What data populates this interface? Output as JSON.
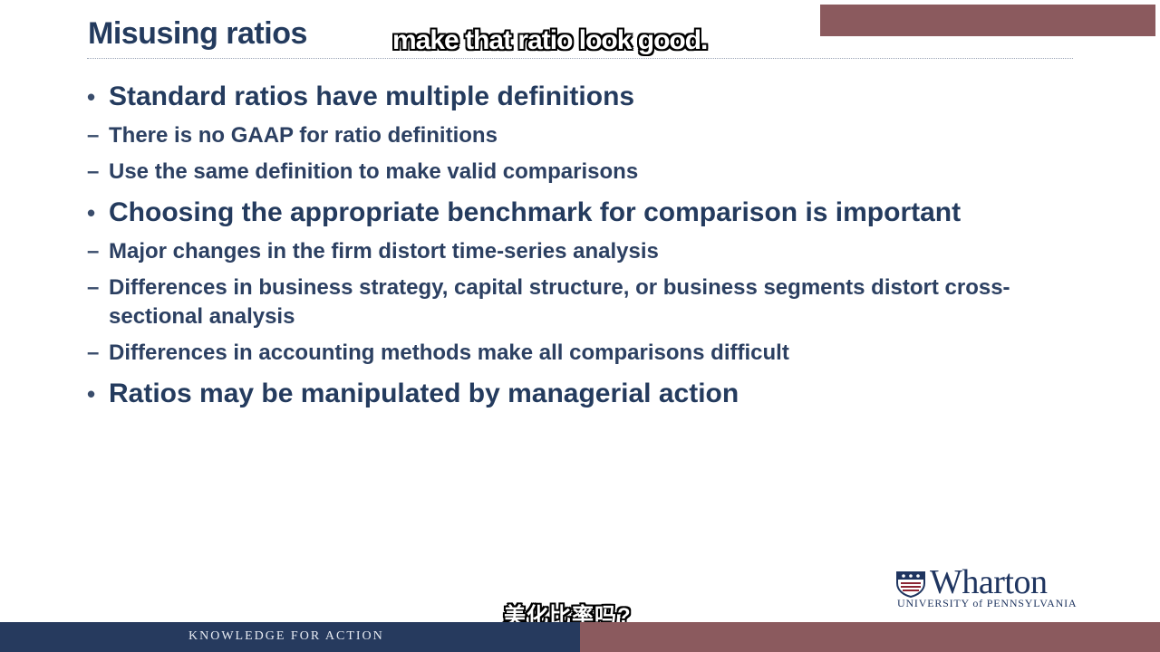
{
  "slide": {
    "title": "Misusing ratios",
    "bullets": [
      {
        "text": "Standard ratios have multiple definitions",
        "subs": [
          "There is no GAAP for ratio definitions",
          "Use the same definition to make valid comparisons"
        ]
      },
      {
        "text": "Choosing the appropriate benchmark for comparison is important",
        "subs": [
          "Major changes in the firm distort time-series analysis",
          "Differences in business strategy, capital structure, or business segments distort cross-sectional analysis",
          "Differences in accounting methods make all comparisons difficult"
        ]
      },
      {
        "text": "Ratios may be manipulated by managerial action",
        "subs": []
      }
    ],
    "bullet_glyph": "•",
    "dash_glyph": "–"
  },
  "captions": {
    "english": "make that ratio look good.",
    "chinese": "美化比率吗?"
  },
  "logo": {
    "wordmark": "Wharton",
    "subline": "UNIVERSITY of PENNSYLVANIA",
    "icon": "penn-shield-icon"
  },
  "footer": {
    "tagline": "KNOWLEDGE FOR ACTION"
  },
  "colors": {
    "navy": "#243b5e",
    "footer_navy": "#263a5e",
    "maroon": "#8b5a5e"
  }
}
